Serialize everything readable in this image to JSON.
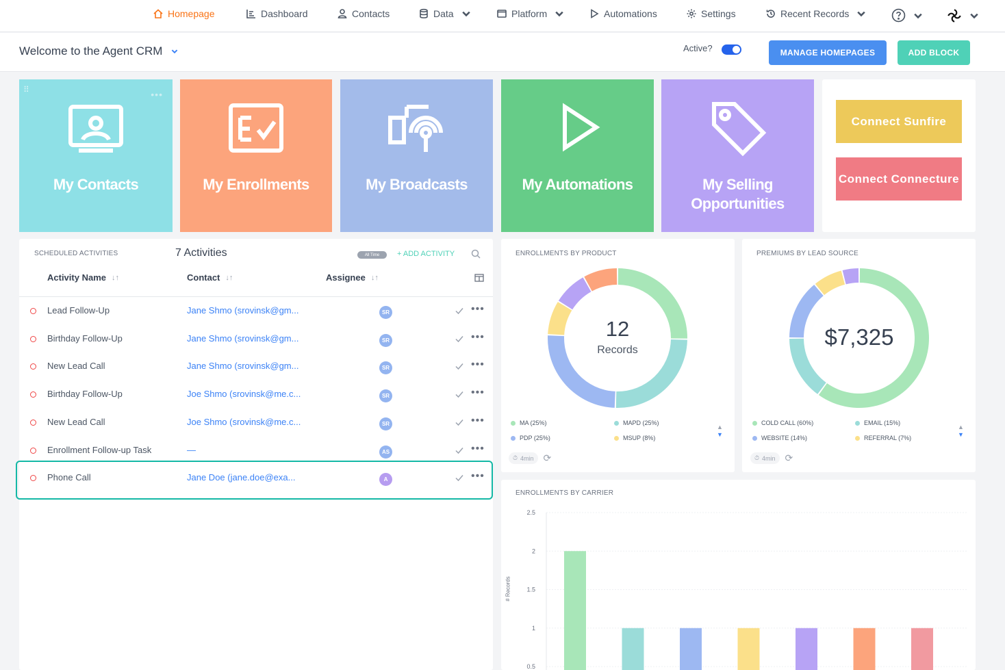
{
  "nav": {
    "items": [
      {
        "label": "Homepage"
      },
      {
        "label": "Dashboard"
      },
      {
        "label": "Contacts"
      },
      {
        "label": "Data"
      },
      {
        "label": "Platform"
      },
      {
        "label": "Automations"
      },
      {
        "label": "Settings"
      },
      {
        "label": "Recent Records"
      }
    ]
  },
  "header": {
    "title": "Welcome to the Agent CRM",
    "active_label": "Active?",
    "manage_button": "MANAGE HOMEPAGES",
    "add_block_button": "ADD BLOCK"
  },
  "tiles": [
    {
      "label": "My Contacts",
      "color": "#8ee0e6"
    },
    {
      "label": "My Enrollments",
      "color": "#fca47c"
    },
    {
      "label": "My Broadcasts",
      "color": "#a3bbea"
    },
    {
      "label": "My Automations",
      "color": "#66cc88"
    },
    {
      "label": "My Selling Opportunities",
      "color": "#b7a3f5"
    }
  ],
  "connect": {
    "sunfire": "Connect Sunfire",
    "connecture": "Connect Connecture"
  },
  "activities": {
    "section_title": "SCHEDULED ACTIVITIES",
    "count_label": "7 Activities",
    "filter_badge": "All Time",
    "add_label": "+ ADD ACTIVITY",
    "columns": [
      "Activity Name",
      "Contact",
      "Assignee"
    ],
    "rows": [
      {
        "name": "Lead Follow-Up",
        "contact": "Jane Shmo (srovinsk@gm...",
        "assignee": "SR"
      },
      {
        "name": "Birthday Follow-Up",
        "contact": "Jane Shmo (srovinsk@gm...",
        "assignee": "SR"
      },
      {
        "name": "New Lead Call",
        "contact": "Jane Shmo (srovinsk@gm...",
        "assignee": "SR"
      },
      {
        "name": "Birthday Follow-Up",
        "contact": "Joe Shmo (srovinsk@me.c...",
        "assignee": "SR"
      },
      {
        "name": "New Lead Call",
        "contact": "Joe Shmo (srovinsk@me.c...",
        "assignee": "SR"
      },
      {
        "name": "Enrollment Follow-up Task",
        "contact": "—",
        "assignee": "AS"
      },
      {
        "name": "Phone Call",
        "contact": "Jane Doe (jane.doe@exa...",
        "assignee": "A"
      }
    ]
  },
  "enrollments_by_product": {
    "title": "ENROLLMENTS BY PRODUCT",
    "center_value": "12",
    "center_label": "Records",
    "refresh": "4min",
    "legend": [
      {
        "label": "MA (25%)",
        "color": "#a8e6b8"
      },
      {
        "label": "MAPD (25%)",
        "color": "#9bdcd9"
      },
      {
        "label": "PDP (25%)",
        "color": "#9db8f2"
      },
      {
        "label": "MSUP (8%)",
        "color": "#fbe08a"
      }
    ]
  },
  "premiums_by_lead_source": {
    "title": "PREMIUMS BY LEAD SOURCE",
    "center_value": "$7,325",
    "refresh": "4min",
    "legend": [
      {
        "label": "COLD CALL (60%)",
        "color": "#a8e6b8"
      },
      {
        "label": "EMAIL (15%)",
        "color": "#9bdcd9"
      },
      {
        "label": "WEBSITE (14%)",
        "color": "#9db8f2"
      },
      {
        "label": "REFERRAL (7%)",
        "color": "#fbe08a"
      }
    ]
  },
  "chart_data": [
    {
      "type": "pie",
      "title": "ENROLLMENTS BY PRODUCT",
      "categories": [
        "MA",
        "MAPD",
        "PDP",
        "MSUP",
        "",
        "",
        ""
      ],
      "values": [
        25,
        25,
        25,
        8,
        8,
        8,
        0
      ],
      "colors": [
        "#a8e6b8",
        "#9bdcd9",
        "#9db8f2",
        "#fbe08a",
        "#b7a3f5",
        "#fca47c",
        "#f19aa0"
      ]
    },
    {
      "type": "pie",
      "title": "PREMIUMS BY LEAD SOURCE",
      "categories": [
        "COLD CALL",
        "EMAIL",
        "WEBSITE",
        "REFERRAL",
        ""
      ],
      "values": [
        60,
        15,
        14,
        7,
        4
      ],
      "colors": [
        "#a8e6b8",
        "#9bdcd9",
        "#9db8f2",
        "#fbe08a",
        "#b7a3f5"
      ]
    },
    {
      "type": "bar",
      "title": "ENROLLMENTS BY CARRIER",
      "ylabel": "# Records",
      "ylim": [
        0.5,
        2.5
      ],
      "yticks": [
        "2.5",
        "2",
        "1.5",
        "1",
        "0.5"
      ],
      "values": [
        2,
        1,
        1,
        1,
        1,
        1,
        1
      ],
      "colors": [
        "#a8e6b8",
        "#9bdcd9",
        "#9db8f2",
        "#fbe08a",
        "#b7a3f5",
        "#fca47c",
        "#f19aa0"
      ]
    }
  ]
}
